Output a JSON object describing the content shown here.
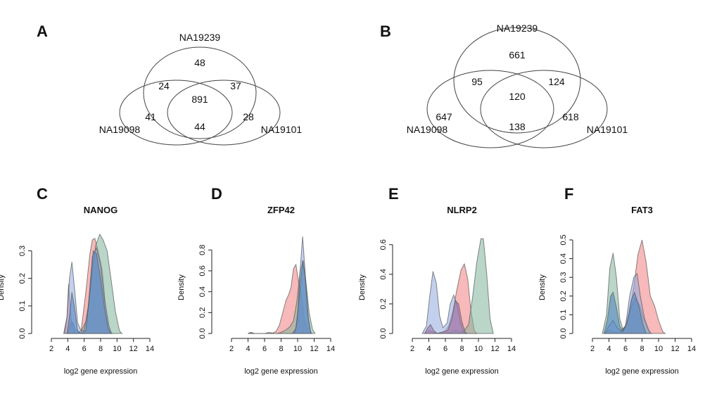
{
  "chart_data": [
    {
      "type": "venn",
      "label": "A",
      "sets": [
        "NA19239",
        "NA19098",
        "NA19101"
      ],
      "regions": {
        "only_NA19239": 48,
        "only_NA19098": 41,
        "only_NA19101": 28,
        "NA19239_NA19098": 24,
        "NA19239_NA19101": 37,
        "NA19098_NA19101": 44,
        "all": 891
      }
    },
    {
      "type": "venn",
      "label": "B",
      "sets": [
        "NA19239",
        "NA19098",
        "NA19101"
      ],
      "regions": {
        "only_NA19239": 661,
        "only_NA19098": 647,
        "only_NA19101": 618,
        "NA19239_NA19098": 95,
        "NA19239_NA19101": 124,
        "NA19098_NA19101": 138,
        "all": 120
      }
    },
    {
      "type": "area",
      "label": "C",
      "title": "NANOG",
      "xlabel": "log2 gene expression",
      "ylabel": "Density",
      "xlim": [
        2,
        14
      ],
      "xticks": [
        2,
        4,
        6,
        8,
        10,
        12,
        14
      ],
      "ylim": [
        0,
        0.36
      ],
      "yticks": [
        0.0,
        0.1,
        0.2,
        0.3
      ],
      "series": [
        {
          "color": "#f08080",
          "points": [
            [
              3.5,
              0
            ],
            [
              3.9,
              0.06
            ],
            [
              4.1,
              0.18
            ],
            [
              4.4,
              0.05
            ],
            [
              4.9,
              0.0
            ],
            [
              5.6,
              0.005
            ],
            [
              6.2,
              0.15
            ],
            [
              6.7,
              0.29
            ],
            [
              7.0,
              0.34
            ],
            [
              7.3,
              0.345
            ],
            [
              7.7,
              0.3
            ],
            [
              8.2,
              0.23
            ],
            [
              8.6,
              0.1
            ],
            [
              9.0,
              0.02
            ],
            [
              9.4,
              0
            ]
          ]
        },
        {
          "color": "#7fb59a",
          "points": [
            [
              4.0,
              0
            ],
            [
              4.3,
              0.03
            ],
            [
              4.6,
              0.04
            ],
            [
              5.0,
              0.01
            ],
            [
              5.6,
              0.005
            ],
            [
              6.3,
              0.05
            ],
            [
              6.9,
              0.2
            ],
            [
              7.4,
              0.32
            ],
            [
              7.9,
              0.36
            ],
            [
              8.3,
              0.34
            ],
            [
              8.8,
              0.3
            ],
            [
              9.3,
              0.19
            ],
            [
              9.8,
              0.08
            ],
            [
              10.3,
              0.01
            ],
            [
              10.6,
              0
            ]
          ]
        },
        {
          "color": "#8fa9de",
          "points": [
            [
              3.6,
              0
            ],
            [
              3.9,
              0.06
            ],
            [
              4.2,
              0.2
            ],
            [
              4.5,
              0.26
            ],
            [
              4.8,
              0.17
            ],
            [
              5.2,
              0.04
            ],
            [
              5.6,
              0.01
            ],
            [
              6.0,
              0.01
            ],
            [
              6.5,
              0.1
            ],
            [
              7.0,
              0.28
            ],
            [
              7.5,
              0.31
            ],
            [
              8.0,
              0.25
            ],
            [
              8.5,
              0.12
            ],
            [
              9.0,
              0.03
            ],
            [
              9.3,
              0
            ]
          ]
        },
        {
          "color": "#4a7fc0",
          "points": [
            [
              3.9,
              0
            ],
            [
              4.2,
              0.06
            ],
            [
              4.5,
              0.15
            ],
            [
              4.8,
              0.1
            ],
            [
              5.2,
              0.01
            ],
            [
              5.6,
              0
            ],
            [
              6.2,
              0.01
            ],
            [
              6.7,
              0.15
            ],
            [
              7.1,
              0.3
            ],
            [
              7.5,
              0.29
            ],
            [
              8.0,
              0.2
            ],
            [
              8.5,
              0.09
            ],
            [
              8.9,
              0.02
            ],
            [
              9.2,
              0
            ]
          ]
        }
      ]
    },
    {
      "type": "area",
      "label": "D",
      "title": "ZFP42",
      "xlabel": "log2 gene expression",
      "ylabel": "Density",
      "xlim": [
        2,
        14
      ],
      "xticks": [
        2,
        4,
        6,
        8,
        10,
        12,
        14
      ],
      "ylim": [
        0,
        0.95
      ],
      "yticks": [
        0.0,
        0.2,
        0.4,
        0.6,
        0.8
      ],
      "series": [
        {
          "color": "#f08080",
          "points": [
            [
              4.0,
              0
            ],
            [
              4.4,
              0.01
            ],
            [
              4.8,
              0
            ],
            [
              6.0,
              0
            ],
            [
              6.5,
              0.01
            ],
            [
              7.0,
              0.005
            ],
            [
              7.4,
              0.02
            ],
            [
              7.8,
              0.08
            ],
            [
              8.2,
              0.2
            ],
            [
              8.6,
              0.32
            ],
            [
              8.9,
              0.37
            ],
            [
              9.2,
              0.44
            ],
            [
              9.5,
              0.62
            ],
            [
              9.8,
              0.66
            ],
            [
              10.1,
              0.5
            ],
            [
              10.4,
              0.38
            ],
            [
              10.8,
              0.15
            ],
            [
              11.2,
              0.03
            ],
            [
              11.5,
              0
            ]
          ]
        },
        {
          "color": "#7fb59a",
          "points": [
            [
              4.0,
              0
            ],
            [
              4.3,
              0.01
            ],
            [
              4.7,
              0
            ],
            [
              7.5,
              0
            ],
            [
              8.0,
              0.01
            ],
            [
              8.5,
              0.03
            ],
            [
              9.0,
              0.06
            ],
            [
              9.5,
              0.12
            ],
            [
              9.9,
              0.3
            ],
            [
              10.3,
              0.6
            ],
            [
              10.7,
              0.7
            ],
            [
              11.0,
              0.5
            ],
            [
              11.4,
              0.2
            ],
            [
              11.8,
              0.04
            ],
            [
              12.1,
              0
            ]
          ]
        },
        {
          "color": "#8fa9de",
          "points": [
            [
              9.3,
              0
            ],
            [
              9.7,
              0.02
            ],
            [
              10.0,
              0.15
            ],
            [
              10.3,
              0.6
            ],
            [
              10.6,
              0.93
            ],
            [
              10.9,
              0.6
            ],
            [
              11.2,
              0.2
            ],
            [
              11.5,
              0.03
            ],
            [
              11.7,
              0
            ]
          ]
        },
        {
          "color": "#4a7fc0",
          "points": [
            [
              9.4,
              0
            ],
            [
              9.8,
              0.05
            ],
            [
              10.2,
              0.35
            ],
            [
              10.6,
              0.7
            ],
            [
              10.9,
              0.55
            ],
            [
              11.3,
              0.15
            ],
            [
              11.6,
              0
            ]
          ]
        }
      ]
    },
    {
      "type": "area",
      "label": "E",
      "title": "NLRP2",
      "xlabel": "log2 gene expression",
      "ylabel": "Density",
      "xlim": [
        2,
        14
      ],
      "xticks": [
        2,
        4,
        6,
        8,
        10,
        12,
        14
      ],
      "ylim": [
        0,
        0.67
      ],
      "yticks": [
        0.0,
        0.2,
        0.4,
        0.6
      ],
      "series": [
        {
          "color": "#f08080",
          "points": [
            [
              3.5,
              0
            ],
            [
              4.0,
              0.02
            ],
            [
              4.5,
              0.01
            ],
            [
              5.0,
              0
            ],
            [
              5.8,
              0.005
            ],
            [
              6.4,
              0.05
            ],
            [
              6.9,
              0.15
            ],
            [
              7.4,
              0.3
            ],
            [
              7.9,
              0.43
            ],
            [
              8.3,
              0.47
            ],
            [
              8.7,
              0.37
            ],
            [
              9.1,
              0.15
            ],
            [
              9.5,
              0.02
            ],
            [
              9.8,
              0
            ]
          ]
        },
        {
          "color": "#7fb59a",
          "points": [
            [
              6.0,
              0
            ],
            [
              6.6,
              0.005
            ],
            [
              7.0,
              0.02
            ],
            [
              7.4,
              0.02
            ],
            [
              7.8,
              0.01
            ],
            [
              8.3,
              0.02
            ],
            [
              8.8,
              0.06
            ],
            [
              9.3,
              0.25
            ],
            [
              9.8,
              0.48
            ],
            [
              10.3,
              0.64
            ],
            [
              10.6,
              0.64
            ],
            [
              11.0,
              0.4
            ],
            [
              11.4,
              0.1
            ],
            [
              11.8,
              0
            ]
          ]
        },
        {
          "color": "#8fa9de",
          "points": [
            [
              3.2,
              0
            ],
            [
              3.7,
              0.05
            ],
            [
              4.1,
              0.25
            ],
            [
              4.5,
              0.42
            ],
            [
              4.9,
              0.34
            ],
            [
              5.3,
              0.12
            ],
            [
              5.7,
              0.04
            ],
            [
              6.2,
              0.07
            ],
            [
              6.6,
              0.2
            ],
            [
              7.0,
              0.26
            ],
            [
              7.4,
              0.2
            ],
            [
              7.8,
              0.08
            ],
            [
              8.2,
              0.01
            ],
            [
              8.5,
              0
            ]
          ]
        },
        {
          "color": "#9a6fa8",
          "points": [
            [
              3.5,
              0
            ],
            [
              3.9,
              0.04
            ],
            [
              4.2,
              0.06
            ],
            [
              4.6,
              0.02
            ],
            [
              5.0,
              0
            ],
            [
              6.3,
              0.02
            ],
            [
              6.8,
              0.1
            ],
            [
              7.2,
              0.22
            ],
            [
              7.6,
              0.2
            ],
            [
              8.0,
              0.08
            ],
            [
              8.4,
              0.01
            ],
            [
              8.6,
              0
            ]
          ]
        }
      ]
    },
    {
      "type": "area",
      "label": "F",
      "title": "FAT3",
      "xlabel": "log2 gene expression",
      "ylabel": "Density",
      "xlim": [
        2,
        14
      ],
      "xticks": [
        2,
        4,
        6,
        8,
        10,
        12,
        14
      ],
      "ylim": [
        0,
        0.53
      ],
      "yticks": [
        0.0,
        0.1,
        0.2,
        0.3,
        0.4,
        0.5
      ],
      "series": [
        {
          "color": "#f08080",
          "points": [
            [
              3.5,
              0
            ],
            [
              4.0,
              0.02
            ],
            [
              4.5,
              0.01
            ],
            [
              5.2,
              0.005
            ],
            [
              6.0,
              0.04
            ],
            [
              6.5,
              0.12
            ],
            [
              7.0,
              0.25
            ],
            [
              7.5,
              0.42
            ],
            [
              8.0,
              0.5
            ],
            [
              8.5,
              0.38
            ],
            [
              9.0,
              0.2
            ],
            [
              9.5,
              0.15
            ],
            [
              10.0,
              0.07
            ],
            [
              10.5,
              0.01
            ],
            [
              10.8,
              0
            ]
          ]
        },
        {
          "color": "#7fb59a",
          "points": [
            [
              3.2,
              0
            ],
            [
              3.7,
              0.1
            ],
            [
              4.1,
              0.35
            ],
            [
              4.5,
              0.43
            ],
            [
              4.9,
              0.3
            ],
            [
              5.3,
              0.08
            ],
            [
              5.7,
              0.02
            ],
            [
              6.2,
              0.06
            ],
            [
              6.7,
              0.14
            ],
            [
              7.2,
              0.19
            ],
            [
              7.7,
              0.15
            ],
            [
              8.2,
              0.08
            ],
            [
              8.7,
              0.02
            ],
            [
              9.0,
              0
            ]
          ]
        },
        {
          "color": "#8fa9de",
          "points": [
            [
              3.5,
              0
            ],
            [
              4.0,
              0.04
            ],
            [
              4.5,
              0.07
            ],
            [
              5.0,
              0.03
            ],
            [
              5.5,
              0.01
            ],
            [
              6.0,
              0.04
            ],
            [
              6.5,
              0.2
            ],
            [
              7.0,
              0.3
            ],
            [
              7.4,
              0.32
            ],
            [
              7.8,
              0.2
            ],
            [
              8.3,
              0.08
            ],
            [
              8.8,
              0.02
            ],
            [
              9.1,
              0
            ]
          ]
        },
        {
          "color": "#4a7fc0",
          "points": [
            [
              3.4,
              0
            ],
            [
              3.8,
              0.07
            ],
            [
              4.2,
              0.2
            ],
            [
              4.5,
              0.22
            ],
            [
              4.9,
              0.14
            ],
            [
              5.3,
              0.04
            ],
            [
              5.7,
              0.01
            ],
            [
              6.2,
              0.06
            ],
            [
              6.7,
              0.18
            ],
            [
              7.1,
              0.22
            ],
            [
              7.6,
              0.15
            ],
            [
              8.1,
              0.05
            ],
            [
              8.5,
              0
            ]
          ]
        }
      ]
    }
  ]
}
